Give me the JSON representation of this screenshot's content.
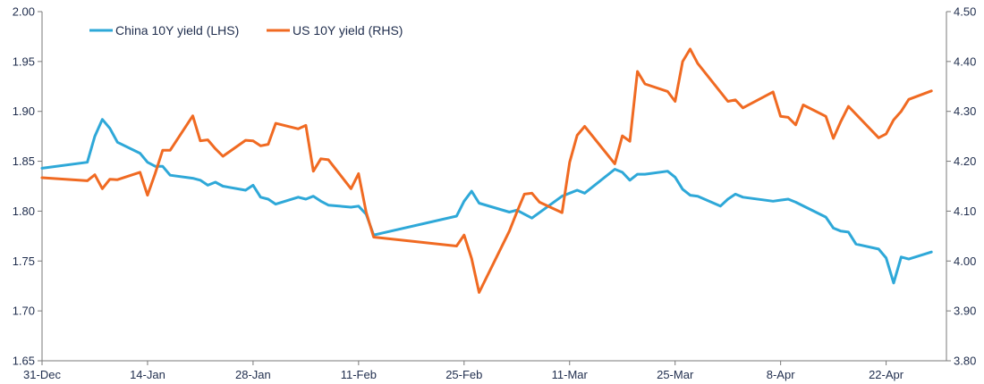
{
  "chart_data": {
    "type": "line",
    "legend_placement": "top-left",
    "grid": false,
    "x_ticks": [
      "31-Dec",
      "14-Jan",
      "28-Jan",
      "11-Feb",
      "25-Feb",
      "11-Mar",
      "25-Mar",
      "8-Apr",
      "22-Apr"
    ],
    "y_left": {
      "range": [
        1.65,
        2.0
      ],
      "ticks": [
        "1.65",
        "1.70",
        "1.75",
        "1.80",
        "1.85",
        "1.90",
        "1.95",
        "2.00"
      ]
    },
    "y_right": {
      "range": [
        3.8,
        4.5
      ],
      "ticks": [
        "3.80",
        "3.90",
        "4.00",
        "4.10",
        "4.20",
        "4.30",
        "4.40",
        "4.50"
      ]
    },
    "series": [
      {
        "name": "China 10Y yield (LHS)",
        "axis": "left",
        "color": "#2ea8d8",
        "x": [
          "2024-12-31",
          "2025-01-06",
          "2025-01-07",
          "2025-01-08",
          "2025-01-09",
          "2025-01-10",
          "2025-01-13",
          "2025-01-14",
          "2025-01-15",
          "2025-01-16",
          "2025-01-17",
          "2025-01-20",
          "2025-01-21",
          "2025-01-22",
          "2025-01-23",
          "2025-01-24",
          "2025-01-27",
          "2025-01-28",
          "2025-01-29",
          "2025-01-30",
          "2025-01-31",
          "2025-02-03",
          "2025-02-04",
          "2025-02-05",
          "2025-02-06",
          "2025-02-07",
          "2025-02-10",
          "2025-02-11",
          "2025-02-12",
          "2025-02-13",
          "2025-02-24",
          "2025-02-25",
          "2025-02-26",
          "2025-02-27",
          "2025-03-03",
          "2025-03-04",
          "2025-03-05",
          "2025-03-06",
          "2025-03-10",
          "2025-03-11",
          "2025-03-12",
          "2025-03-13",
          "2025-03-17",
          "2025-03-18",
          "2025-03-19",
          "2025-03-20",
          "2025-03-21",
          "2025-03-24",
          "2025-03-25",
          "2025-03-26",
          "2025-03-27",
          "2025-03-28",
          "2025-03-31",
          "2025-04-01",
          "2025-04-02",
          "2025-04-03",
          "2025-04-07",
          "2025-04-08",
          "2025-04-09",
          "2025-04-10",
          "2025-04-14",
          "2025-04-15",
          "2025-04-16",
          "2025-04-17",
          "2025-04-18",
          "2025-04-21",
          "2025-04-22",
          "2025-04-23",
          "2025-04-24",
          "2025-04-25",
          "2025-04-28"
        ],
        "values": [
          1.843,
          1.849,
          1.875,
          1.892,
          1.883,
          1.869,
          1.858,
          1.849,
          1.845,
          1.845,
          1.836,
          1.833,
          1.831,
          1.826,
          1.829,
          1.825,
          1.821,
          1.826,
          1.814,
          1.812,
          1.807,
          1.814,
          1.812,
          1.815,
          1.81,
          1.806,
          1.804,
          1.805,
          1.797,
          1.776,
          1.795,
          1.81,
          1.82,
          1.808,
          1.799,
          1.801,
          1.797,
          1.793,
          1.815,
          1.818,
          1.821,
          1.818,
          1.842,
          1.839,
          1.831,
          1.837,
          1.837,
          1.84,
          1.834,
          1.822,
          1.816,
          1.815,
          1.805,
          1.812,
          1.817,
          1.814,
          1.81,
          1.811,
          1.812,
          1.809,
          1.794,
          1.783,
          1.78,
          1.779,
          1.767,
          1.762,
          1.753,
          1.728,
          1.754,
          1.752,
          1.759
        ]
      },
      {
        "name": "US 10Y yield (RHS)",
        "axis": "right",
        "color": "#f06a22",
        "x": [
          "2024-12-31",
          "2025-01-06",
          "2025-01-07",
          "2025-01-08",
          "2025-01-09",
          "2025-01-10",
          "2025-01-13",
          "2025-01-14",
          "2025-01-15",
          "2025-01-16",
          "2025-01-17",
          "2025-01-20",
          "2025-01-21",
          "2025-01-22",
          "2025-01-23",
          "2025-01-24",
          "2025-01-27",
          "2025-01-28",
          "2025-01-29",
          "2025-01-30",
          "2025-01-31",
          "2025-02-03",
          "2025-02-04",
          "2025-02-05",
          "2025-02-06",
          "2025-02-07",
          "2025-02-10",
          "2025-02-11",
          "2025-02-12",
          "2025-02-13",
          "2025-02-24",
          "2025-02-25",
          "2025-02-26",
          "2025-02-27",
          "2025-03-03",
          "2025-03-04",
          "2025-03-05",
          "2025-03-06",
          "2025-03-07",
          "2025-03-10",
          "2025-03-11",
          "2025-03-12",
          "2025-03-13",
          "2025-03-17",
          "2025-03-18",
          "2025-03-19",
          "2025-03-20",
          "2025-03-21",
          "2025-03-24",
          "2025-03-25",
          "2025-03-26",
          "2025-03-27",
          "2025-03-28",
          "2025-03-31",
          "2025-04-01",
          "2025-04-02",
          "2025-04-03",
          "2025-04-07",
          "2025-04-08",
          "2025-04-09",
          "2025-04-10",
          "2025-04-11",
          "2025-04-14",
          "2025-04-15",
          "2025-04-16",
          "2025-04-17",
          "2025-04-21",
          "2025-04-22",
          "2025-04-23",
          "2025-04-24",
          "2025-04-25",
          "2025-04-28"
        ],
        "values": [
          4.167,
          4.161,
          4.173,
          4.145,
          4.164,
          4.163,
          4.178,
          4.132,
          4.175,
          4.222,
          4.222,
          4.291,
          4.241,
          4.243,
          4.225,
          4.21,
          4.242,
          4.241,
          4.231,
          4.234,
          4.276,
          4.265,
          4.272,
          4.18,
          4.205,
          4.203,
          4.145,
          4.175,
          4.098,
          4.048,
          4.03,
          4.052,
          4.005,
          3.937,
          4.06,
          4.098,
          4.134,
          4.136,
          4.118,
          4.097,
          4.198,
          4.252,
          4.27,
          4.195,
          4.251,
          4.24,
          4.38,
          4.355,
          4.34,
          4.32,
          4.4,
          4.425,
          4.396,
          4.339,
          4.32,
          4.323,
          4.307,
          4.339,
          4.29,
          4.288,
          4.273,
          4.313,
          4.29,
          4.246,
          4.28,
          4.31,
          4.247,
          4.255,
          4.283,
          4.3,
          4.324,
          4.341
        ]
      }
    ]
  }
}
